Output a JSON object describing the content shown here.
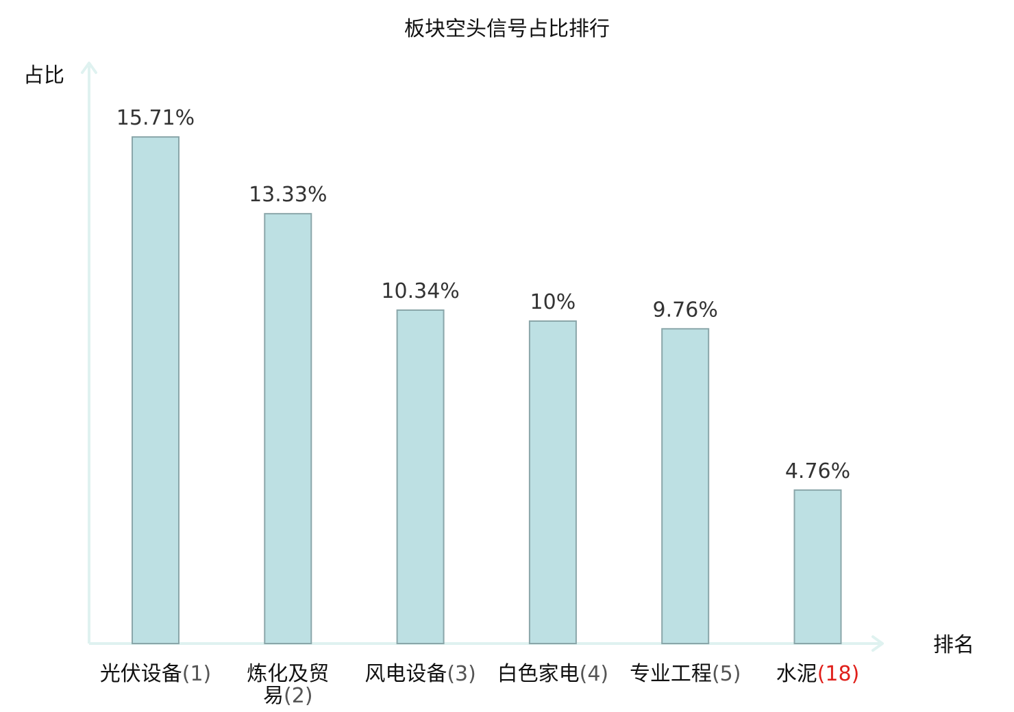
{
  "chart_data": {
    "type": "bar",
    "title": "板块空头信号占比排行",
    "xlabel": "排名",
    "ylabel": "占比",
    "ylim": [
      0,
      18
    ],
    "grid": false,
    "legend": "none",
    "categories": [
      {
        "name": "光伏设备",
        "rank": "(1)",
        "highlight": false
      },
      {
        "name": "炼化及贸易",
        "rank": "(2)",
        "highlight": false
      },
      {
        "name": "风电设备",
        "rank": "(3)",
        "highlight": false
      },
      {
        "name": "白色家电",
        "rank": "(4)",
        "highlight": false
      },
      {
        "name": "专业工程",
        "rank": "(5)",
        "highlight": false
      },
      {
        "name": "水泥",
        "rank": "(18)",
        "highlight": true
      }
    ],
    "values": [
      15.71,
      13.33,
      10.34,
      10,
      9.76,
      4.76
    ],
    "value_labels": [
      "15.71%",
      "13.33%",
      "10.34%",
      "10%",
      "9.76%",
      "4.76%"
    ],
    "colors": {
      "bar_fill": "#bde0e3",
      "bar_stroke": "#8aa6a9",
      "axis": "#dff2f0",
      "highlight_text": "#e0201b",
      "text": "#111111",
      "value_text": "#333333"
    }
  }
}
